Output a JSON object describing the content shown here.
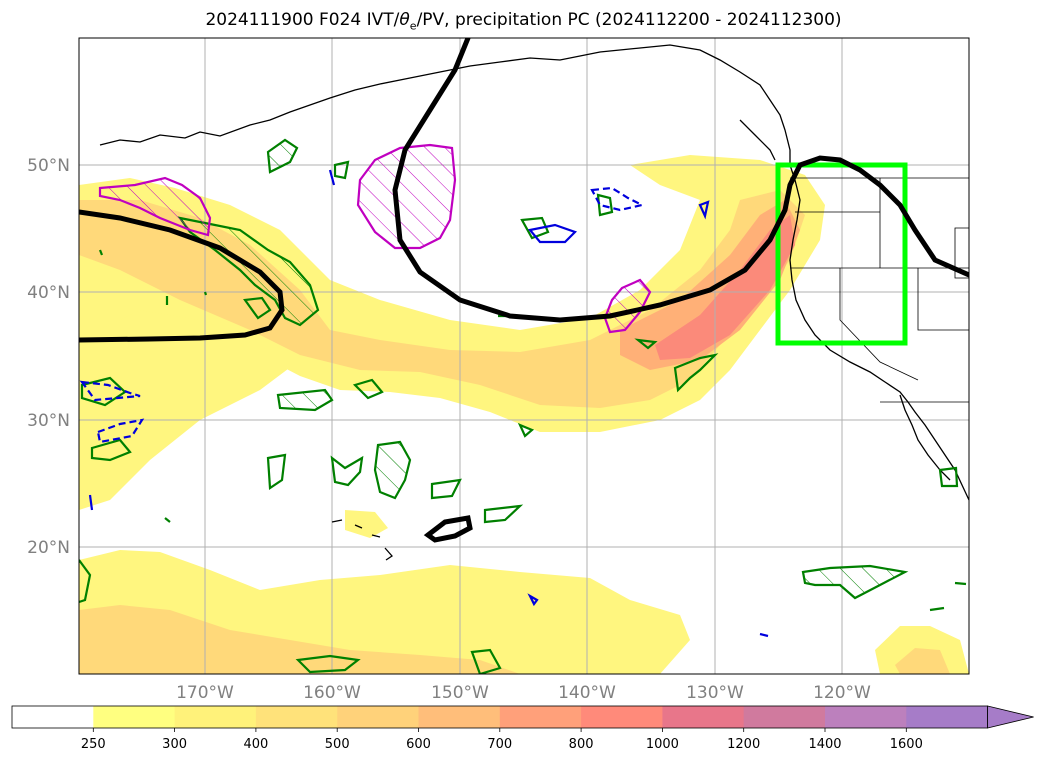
{
  "title": {
    "pre": "2024111900 F024 IVT/",
    "theta": "θ",
    "theta_sub": "e",
    "post": "/PV, precipitation PC (2024112200 - 2024112300)"
  },
  "axes": {
    "lon_labels": [
      "170°W",
      "160°W",
      "150°W",
      "140°W",
      "130°W",
      "120°W"
    ],
    "lat_labels": [
      "50°N",
      "40°N",
      "30°N",
      "20°N"
    ]
  },
  "colorbar": {
    "labels": [
      "250",
      "300",
      "400",
      "500",
      "600",
      "700",
      "800",
      "1000",
      "1200",
      "1400",
      "1600"
    ],
    "colors": [
      "#ffffff",
      "#ffff80",
      "#fff27a",
      "#ffe27a",
      "#ffd27a",
      "#ffbe7a",
      "#ffa07a",
      "#ff8a7a",
      "#e8768a",
      "#d07a9e",
      "#bc80bd",
      "#a67cc8"
    ],
    "extend": "max"
  },
  "colors": {
    "ivt_light": "#fff67f",
    "ivt_mid": "#ffd97a",
    "ivt_strong": "#ffb077",
    "ivt_peak": "#fb8a7a",
    "pv_contour": "#000000",
    "theta_e": "#008000",
    "precip_pos": "#c000c0",
    "precip_neg": "#0000dd",
    "box": "#00ff00"
  }
}
